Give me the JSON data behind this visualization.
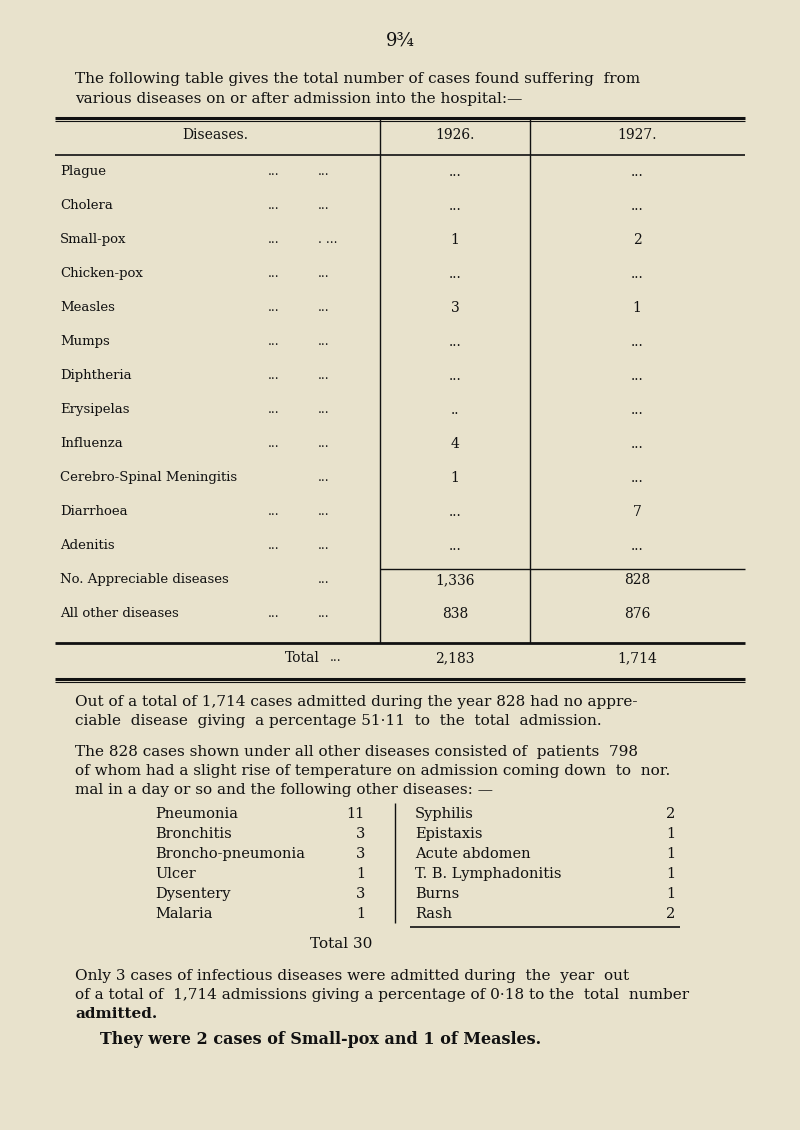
{
  "bg_color": "#e8e2cc",
  "page_number": "9¾",
  "intro_line1": "The following table gives the total number of cases found suffering  from",
  "intro_line2": "various diseases on or after admission into the hospital:—",
  "table_rows": [
    [
      "Plague",
      "...",
      "...",
      "...",
      "..."
    ],
    [
      "Cholera",
      "...",
      "...",
      "...",
      "..."
    ],
    [
      "Small-pox",
      "...",
      ". ...",
      "1",
      "2"
    ],
    [
      "Chicken-pox",
      "...",
      "...",
      "...",
      "..."
    ],
    [
      "Measles",
      "...",
      "...",
      "3",
      "1"
    ],
    [
      "Mumps",
      "...",
      "...",
      "...",
      "..."
    ],
    [
      "Diphtheria",
      "...",
      "...",
      "...",
      "..."
    ],
    [
      "Erysipelas",
      "...",
      "...",
      "..",
      "..."
    ],
    [
      "Influenza",
      "...",
      "...",
      "4",
      "..."
    ],
    [
      "Cerebro-Spinal Meningitis",
      "",
      "...",
      "1",
      "..."
    ],
    [
      "Diarrhoea",
      "...",
      "...",
      "...",
      "7"
    ],
    [
      "Adenitis",
      "...",
      "...",
      "...",
      "..."
    ],
    [
      "No. Appreciable diseases",
      "",
      "...",
      "1,336",
      "828"
    ],
    [
      "All other diseases",
      "...",
      "...",
      "838",
      "876"
    ]
  ],
  "sub_left": [
    [
      "Pneumonia",
      "11"
    ],
    [
      "Bronchitis",
      "3"
    ],
    [
      "Broncho-pneumonia",
      "3"
    ],
    [
      "Ulcer",
      "1"
    ],
    [
      "Dysentery",
      "3"
    ],
    [
      "Malaria",
      "1"
    ]
  ],
  "sub_right": [
    [
      "Syphilis",
      "2"
    ],
    [
      "Epistaxis",
      "1"
    ],
    [
      "Acute abdomen",
      "1"
    ],
    [
      "T. B. Lymphadonitis",
      "1"
    ],
    [
      "Burns",
      "1"
    ],
    [
      "Rash",
      "2"
    ]
  ]
}
